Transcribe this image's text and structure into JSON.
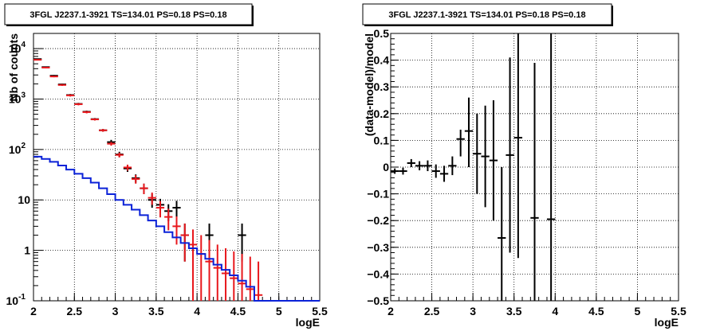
{
  "chart_data": [
    {
      "type": "line",
      "title": "3FGL J2237.1-3921 TS=134.01 PS=0.18 PS=0.18",
      "xlabel": "logE",
      "ylabel": "Nb of counts",
      "xlim": [
        2,
        5.5
      ],
      "ylim": [
        0.1,
        20000
      ],
      "y_scale": "log",
      "grid": true,
      "x_ticks": [
        "2",
        "2.5",
        "3",
        "3.5",
        "4",
        "4.5",
        "5",
        "5.5"
      ],
      "y_ticks": [
        {
          "value": 0.1,
          "label": "10",
          "exp": "-1"
        },
        {
          "value": 1,
          "label": "1",
          "exp": ""
        },
        {
          "value": 10,
          "label": "10",
          "exp": ""
        },
        {
          "value": 100,
          "label": "10",
          "exp": "2"
        },
        {
          "value": 1000,
          "label": "10",
          "exp": "3"
        },
        {
          "value": 10000,
          "label": "10",
          "exp": "4"
        }
      ],
      "series": [
        {
          "color": "#000000",
          "style": "errorbar",
          "points": [
            {
              "x": 2.05,
              "y": 6200,
              "lo": 6050,
              "hi": 6350
            },
            {
              "x": 2.15,
              "y": 4300,
              "lo": 4170,
              "hi": 4430
            },
            {
              "x": 2.25,
              "y": 2900,
              "lo": 2800,
              "hi": 3000
            },
            {
              "x": 2.35,
              "y": 1950,
              "lo": 1870,
              "hi": 2030
            },
            {
              "x": 2.45,
              "y": 1200,
              "lo": 1140,
              "hi": 1260
            },
            {
              "x": 2.55,
              "y": 800,
              "lo": 760,
              "hi": 840
            },
            {
              "x": 2.65,
              "y": 560,
              "lo": 530,
              "hi": 590
            },
            {
              "x": 2.75,
              "y": 400,
              "lo": 380,
              "hi": 420
            },
            {
              "x": 2.85,
              "y": 240,
              "lo": 225,
              "hi": 255
            },
            {
              "x": 2.95,
              "y": 140,
              "lo": 125,
              "hi": 155
            },
            {
              "x": 3.05,
              "y": 80,
              "lo": 70,
              "hi": 90
            },
            {
              "x": 3.15,
              "y": 42,
              "lo": 36,
              "hi": 48
            },
            {
              "x": 3.25,
              "y": 27,
              "lo": 22,
              "hi": 32
            },
            {
              "x": 3.35,
              "y": 17,
              "lo": 13,
              "hi": 21
            },
            {
              "x": 3.45,
              "y": 10,
              "lo": 7,
              "hi": 13
            },
            {
              "x": 3.55,
              "y": 8,
              "lo": 5.5,
              "hi": 10.5
            },
            {
              "x": 3.65,
              "y": 6,
              "lo": 3.8,
              "hi": 8.2
            },
            {
              "x": 3.75,
              "y": 7,
              "lo": 4.6,
              "hi": 9.6
            },
            {
              "x": 3.85,
              "y": 2,
              "lo": 0.6,
              "hi": 3.4
            },
            {
              "x": 4.15,
              "y": 2,
              "lo": 0.6,
              "hi": 3.4
            },
            {
              "x": 4.55,
              "y": 2,
              "lo": 0.6,
              "hi": 3.4
            }
          ]
        },
        {
          "color": "#e8171c",
          "style": "errorbar",
          "points": [
            {
              "x": 2.05,
              "y": 6000,
              "lo": 5850,
              "hi": 6150
            },
            {
              "x": 2.15,
              "y": 4200,
              "lo": 4070,
              "hi": 4330
            },
            {
              "x": 2.25,
              "y": 2800,
              "lo": 2700,
              "hi": 2900
            },
            {
              "x": 2.35,
              "y": 1900,
              "lo": 1820,
              "hi": 1980
            },
            {
              "x": 2.45,
              "y": 1180,
              "lo": 1120,
              "hi": 1240
            },
            {
              "x": 2.55,
              "y": 790,
              "lo": 750,
              "hi": 830
            },
            {
              "x": 2.65,
              "y": 550,
              "lo": 520,
              "hi": 580
            },
            {
              "x": 2.75,
              "y": 395,
              "lo": 375,
              "hi": 415
            },
            {
              "x": 2.85,
              "y": 240,
              "lo": 225,
              "hi": 255
            },
            {
              "x": 2.95,
              "y": 130,
              "lo": 119,
              "hi": 141
            },
            {
              "x": 3.05,
              "y": 78,
              "lo": 70,
              "hi": 86
            },
            {
              "x": 3.15,
              "y": 44,
              "lo": 38,
              "hi": 50
            },
            {
              "x": 3.25,
              "y": 26,
              "lo": 21,
              "hi": 31
            },
            {
              "x": 3.35,
              "y": 17,
              "lo": 13,
              "hi": 21
            },
            {
              "x": 3.45,
              "y": 11,
              "lo": 8,
              "hi": 14
            },
            {
              "x": 3.55,
              "y": 7,
              "lo": 4.5,
              "hi": 9.5
            },
            {
              "x": 3.65,
              "y": 4.6,
              "lo": 2.5,
              "hi": 6.7
            },
            {
              "x": 3.75,
              "y": 3.0,
              "lo": 1.3,
              "hi": 4.7
            },
            {
              "x": 3.85,
              "y": 2.0,
              "lo": 0.6,
              "hi": 3.4
            },
            {
              "x": 3.95,
              "y": 1.3,
              "lo": 0.1,
              "hi": 2.6
            },
            {
              "x": 4.05,
              "y": 0.85,
              "lo": 0.1,
              "hi": 2.0
            },
            {
              "x": 4.15,
              "y": 0.6,
              "lo": 0.1,
              "hi": 1.6
            },
            {
              "x": 4.25,
              "y": 0.45,
              "lo": 0.1,
              "hi": 1.3
            },
            {
              "x": 4.35,
              "y": 0.35,
              "lo": 0.1,
              "hi": 1.1
            },
            {
              "x": 4.45,
              "y": 0.28,
              "lo": 0.1,
              "hi": 0.95
            },
            {
              "x": 4.55,
              "y": 0.22,
              "lo": 0.1,
              "hi": 0.85
            },
            {
              "x": 4.65,
              "y": 0.17,
              "lo": 0.1,
              "hi": 0.75
            },
            {
              "x": 4.75,
              "y": 0.13,
              "lo": 0.1,
              "hi": 0.6
            }
          ]
        },
        {
          "color": "#0b22d8",
          "style": "step",
          "bin_width": 0.1,
          "points": [
            {
              "x": 2.05,
              "y": 72
            },
            {
              "x": 2.15,
              "y": 65
            },
            {
              "x": 2.25,
              "y": 57
            },
            {
              "x": 2.35,
              "y": 48
            },
            {
              "x": 2.45,
              "y": 40
            },
            {
              "x": 2.55,
              "y": 33
            },
            {
              "x": 2.65,
              "y": 27
            },
            {
              "x": 2.75,
              "y": 22
            },
            {
              "x": 2.85,
              "y": 17
            },
            {
              "x": 2.95,
              "y": 13
            },
            {
              "x": 3.05,
              "y": 10
            },
            {
              "x": 3.15,
              "y": 8
            },
            {
              "x": 3.25,
              "y": 6.4
            },
            {
              "x": 3.35,
              "y": 5.0
            },
            {
              "x": 3.45,
              "y": 3.9
            },
            {
              "x": 3.55,
              "y": 3.0
            },
            {
              "x": 3.65,
              "y": 2.3
            },
            {
              "x": 3.75,
              "y": 1.8
            },
            {
              "x": 3.85,
              "y": 1.4
            },
            {
              "x": 3.95,
              "y": 1.1
            },
            {
              "x": 4.05,
              "y": 0.85
            },
            {
              "x": 4.15,
              "y": 0.68
            },
            {
              "x": 4.25,
              "y": 0.52
            },
            {
              "x": 4.35,
              "y": 0.41
            },
            {
              "x": 4.45,
              "y": 0.32
            },
            {
              "x": 4.55,
              "y": 0.25
            },
            {
              "x": 4.65,
              "y": 0.19
            },
            {
              "x": 4.75,
              "y": 0.1
            },
            {
              "x": 4.85,
              "y": 0.1
            },
            {
              "x": 4.95,
              "y": 0.1
            },
            {
              "x": 5.05,
              "y": 0.1
            },
            {
              "x": 5.15,
              "y": 0.1
            },
            {
              "x": 5.25,
              "y": 0.1
            },
            {
              "x": 5.35,
              "y": 0.1
            },
            {
              "x": 5.45,
              "y": 0.1
            }
          ]
        }
      ]
    },
    {
      "type": "scatter",
      "title": "3FGL J2237.1-3921 TS=134.01 PS=0.18 PS=0.18",
      "xlabel": "logE",
      "ylabel": "(data-model)/model",
      "xlim": [
        2,
        5.5
      ],
      "ylim": [
        -0.5,
        0.5
      ],
      "grid": true,
      "x_ticks": [
        "2",
        "2.5",
        "3",
        "3.5",
        "4",
        "4.5",
        "5",
        "5.5"
      ],
      "y_ticks": [
        "−0.5",
        "−0.4",
        "−0.3",
        "−0.2",
        "−0.1",
        "0",
        "0.1",
        "0.2",
        "0.3",
        "0.4",
        "0.5"
      ],
      "series": [
        {
          "color": "#000000",
          "style": "errorbar",
          "points": [
            {
              "x": 2.05,
              "y": -0.015,
              "lo": -0.025,
              "hi": -0.005
            },
            {
              "x": 2.15,
              "y": -0.015,
              "lo": -0.028,
              "hi": -0.002
            },
            {
              "x": 2.25,
              "y": 0.015,
              "lo": 0.0,
              "hi": 0.03
            },
            {
              "x": 2.35,
              "y": 0.005,
              "lo": -0.012,
              "hi": 0.022
            },
            {
              "x": 2.45,
              "y": 0.005,
              "lo": -0.015,
              "hi": 0.025
            },
            {
              "x": 2.55,
              "y": -0.015,
              "lo": -0.04,
              "hi": 0.01
            },
            {
              "x": 2.65,
              "y": -0.025,
              "lo": -0.055,
              "hi": 0.005
            },
            {
              "x": 2.75,
              "y": 0.005,
              "lo": -0.03,
              "hi": 0.04
            },
            {
              "x": 2.85,
              "y": 0.105,
              "lo": 0.04,
              "hi": 0.14
            },
            {
              "x": 2.95,
              "y": 0.135,
              "lo": 0.0,
              "hi": 0.26
            },
            {
              "x": 3.05,
              "y": 0.05,
              "lo": -0.1,
              "hi": 0.2
            },
            {
              "x": 3.15,
              "y": 0.04,
              "lo": -0.15,
              "hi": 0.23
            },
            {
              "x": 3.25,
              "y": 0.025,
              "lo": -0.2,
              "hi": 0.25
            },
            {
              "x": 3.35,
              "y": -0.265,
              "lo": -0.5,
              "hi": 0.0
            },
            {
              "x": 3.45,
              "y": 0.045,
              "lo": -0.32,
              "hi": 0.41
            },
            {
              "x": 3.55,
              "y": 0.11,
              "lo": -0.34,
              "hi": 0.5
            },
            {
              "x": 3.75,
              "y": -0.19,
              "lo": -0.5,
              "hi": 0.39
            },
            {
              "x": 3.95,
              "y": -0.195,
              "lo": -0.5,
              "hi": 0.5
            }
          ]
        }
      ]
    }
  ]
}
